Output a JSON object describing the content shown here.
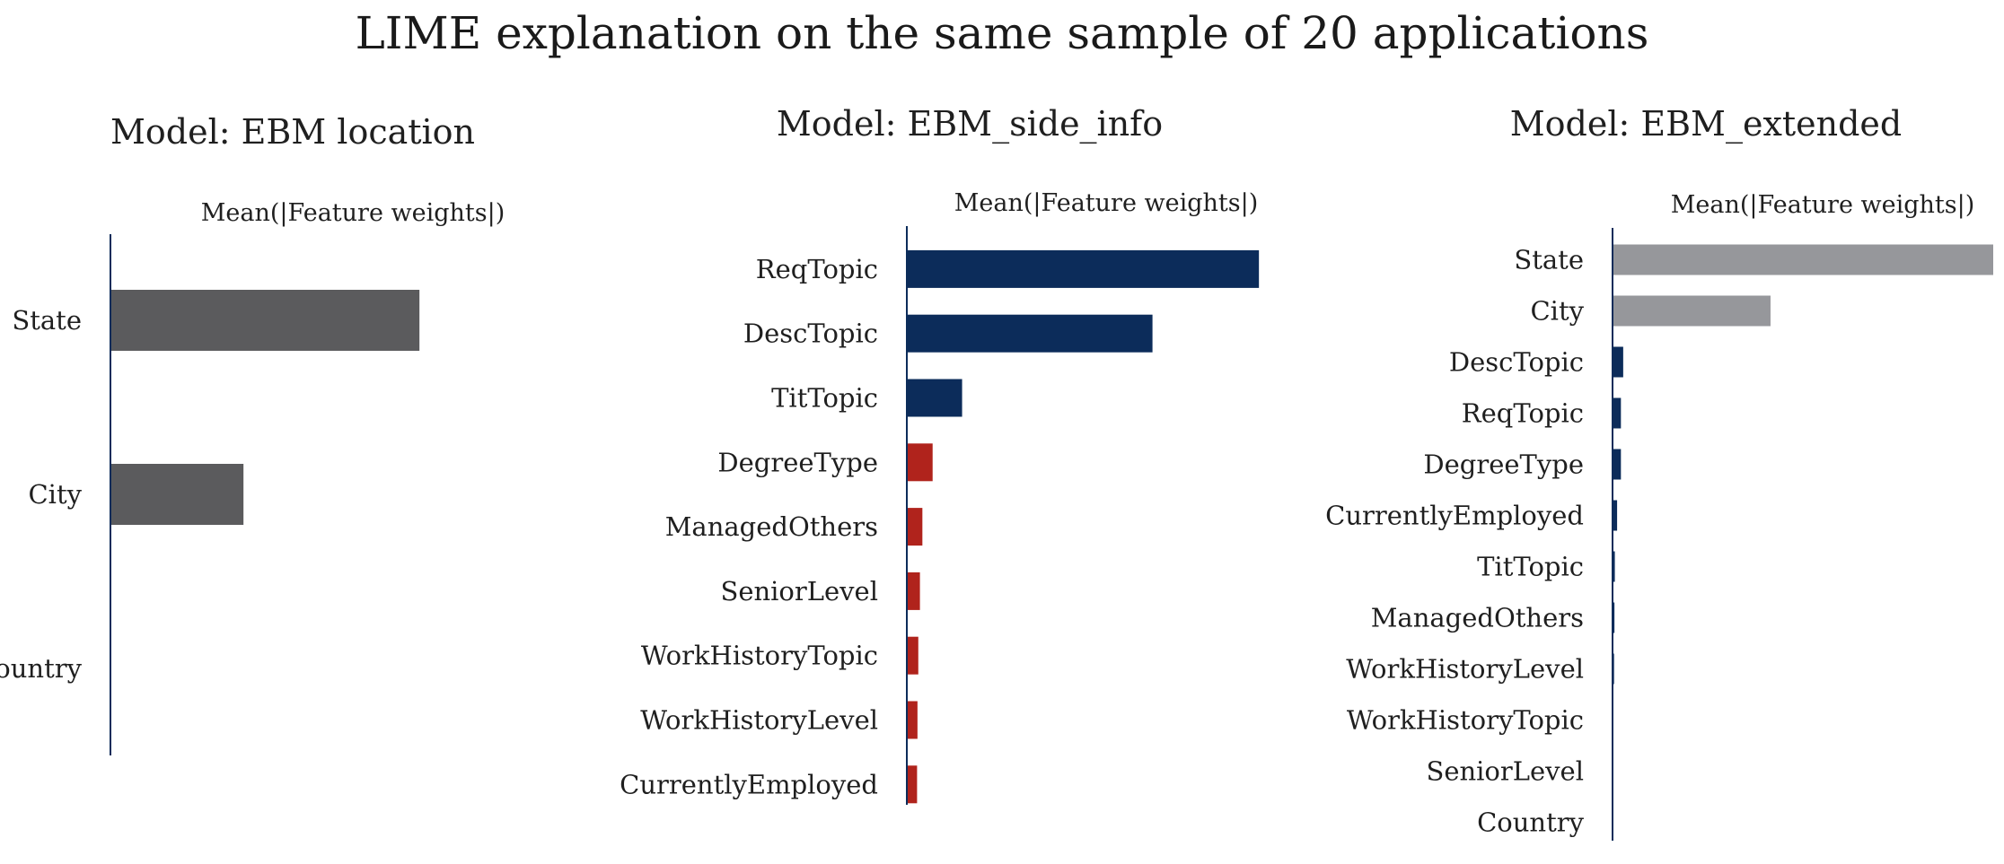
{
  "figure": {
    "title": "LIME explanation on the same sample of 20 applications"
  },
  "chart_data": [
    {
      "type": "bar",
      "orientation": "horizontal",
      "title": "Model: EBM location",
      "xlabel": "Mean(|Feature weights|)",
      "ylabel": "",
      "grid": false,
      "xlim": [
        0,
        1
      ],
      "categories": [
        "State",
        "City",
        "Country"
      ],
      "values": [
        0.72,
        0.31,
        0.0
      ],
      "colors": [
        "#5b5b5d",
        "#5b5b5d",
        "#5b5b5d"
      ]
    },
    {
      "type": "bar",
      "orientation": "horizontal",
      "title": "Model: EBM_side_info",
      "xlabel": "Mean(|Feature weights|)",
      "ylabel": "",
      "grid": false,
      "xlim": [
        0,
        1
      ],
      "categories": [
        "ReqTopic",
        "DescTopic",
        "TitTopic",
        "DegreeType",
        "ManagedOthers",
        "SeniorLevel",
        "WorkHistoryTopic",
        "WorkHistoryLevel",
        "CurrentlyEmployed"
      ],
      "values": [
        0.86,
        0.6,
        0.135,
        0.063,
        0.038,
        0.032,
        0.028,
        0.026,
        0.025
      ],
      "colors": [
        "#0c2c5a",
        "#0c2c5a",
        "#0c2c5a",
        "#b0231c",
        "#b0231c",
        "#b0231c",
        "#b0231c",
        "#b0231c",
        "#b0231c"
      ]
    },
    {
      "type": "bar",
      "orientation": "horizontal",
      "title": "Model: EBM_extended",
      "xlabel": "Mean(|Feature weights|)",
      "ylabel": "",
      "grid": false,
      "xlim": [
        0,
        1
      ],
      "categories": [
        "State",
        "City",
        "DescTopic",
        "ReqTopic",
        "DegreeType",
        "CurrentlyEmployed",
        "TitTopic",
        "ManagedOthers",
        "WorkHistoryLevel",
        "WorkHistoryTopic",
        "SeniorLevel",
        "Country"
      ],
      "values": [
        1.0,
        0.415,
        0.028,
        0.022,
        0.022,
        0.012,
        0.006,
        0.005,
        0.004,
        0.0,
        0.0,
        0.0
      ],
      "colors": [
        "#96979b",
        "#96979b",
        "#0c2c5a",
        "#0c2c5a",
        "#0c2c5a",
        "#0c2c5a",
        "#0c2c5a",
        "#0c2c5a",
        "#0c2c5a",
        "#0c2c5a",
        "#0c2c5a",
        "#0c2c5a"
      ]
    }
  ],
  "colors": {
    "axis": "#0c2c5a",
    "neutral": "#5b5b5d",
    "location": "#96979b",
    "side_info": "#0c2c5a",
    "extended_info": "#b0231c"
  }
}
